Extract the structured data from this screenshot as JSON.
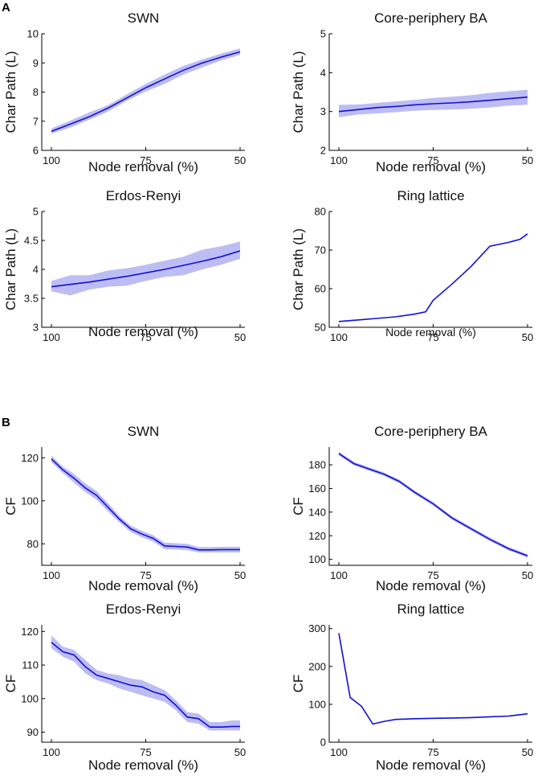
{
  "panel_labels": [
    "A",
    "B"
  ],
  "chart_data": [
    {
      "type": "line",
      "title": "SWN",
      "xlabel": "Node removal (%)",
      "ylabel": "Char Path (L)",
      "xlim": [
        100,
        50
      ],
      "ylim": [
        6,
        10
      ],
      "xticks": [
        "100",
        "75",
        "50"
      ],
      "yticks": [
        "6",
        "7",
        "8",
        "9",
        "10"
      ],
      "series": [
        {
          "name": "mean",
          "x": [
            100,
            95,
            90,
            85,
            80,
            75,
            70,
            65,
            60,
            55,
            50
          ],
          "values": [
            6.65,
            6.9,
            7.15,
            7.45,
            7.8,
            8.15,
            8.45,
            8.75,
            9.0,
            9.2,
            9.38
          ],
          "lower": [
            6.58,
            6.78,
            7.05,
            7.33,
            7.7,
            8.02,
            8.28,
            8.6,
            8.85,
            9.08,
            9.28
          ],
          "upper": [
            6.75,
            7.02,
            7.3,
            7.55,
            7.92,
            8.28,
            8.6,
            8.9,
            9.12,
            9.32,
            9.5
          ]
        }
      ]
    },
    {
      "type": "line",
      "title": "Core-periphery BA",
      "xlabel": "Node removal (%)",
      "ylabel": "Char Path (L)",
      "xlim": [
        100,
        50
      ],
      "ylim": [
        2,
        5
      ],
      "xticks": [
        "100",
        "75",
        "50"
      ],
      "yticks": [
        "2",
        "3",
        "4",
        "5"
      ],
      "series": [
        {
          "name": "mean",
          "x": [
            100,
            95,
            90,
            85,
            80,
            75,
            70,
            65,
            60,
            55,
            50
          ],
          "values": [
            3.0,
            3.05,
            3.1,
            3.13,
            3.17,
            3.2,
            3.22,
            3.25,
            3.29,
            3.33,
            3.37
          ],
          "lower": [
            2.85,
            2.92,
            2.95,
            2.98,
            3.02,
            3.04,
            3.05,
            3.07,
            3.1,
            3.15,
            3.17
          ],
          "upper": [
            3.17,
            3.18,
            3.22,
            3.26,
            3.3,
            3.35,
            3.38,
            3.42,
            3.48,
            3.52,
            3.56
          ]
        }
      ]
    },
    {
      "type": "line",
      "title": "Erdos-Renyi",
      "xlabel": "Node removal (%)",
      "ylabel": "Char Path (L)",
      "xlim": [
        100,
        50
      ],
      "ylim": [
        3,
        5
      ],
      "xticks": [
        "100",
        "75",
        "50"
      ],
      "yticks": [
        "3",
        "3.5",
        "4",
        "4.5",
        "5"
      ],
      "series": [
        {
          "name": "mean",
          "x": [
            100,
            95,
            90,
            85,
            80,
            75,
            70,
            65,
            60,
            55,
            50
          ],
          "values": [
            3.7,
            3.74,
            3.78,
            3.83,
            3.88,
            3.94,
            4.0,
            4.07,
            4.14,
            4.22,
            4.32
          ],
          "lower": [
            3.62,
            3.55,
            3.65,
            3.7,
            3.72,
            3.8,
            3.87,
            3.9,
            4.0,
            4.08,
            4.18
          ],
          "upper": [
            3.8,
            3.9,
            3.9,
            3.98,
            4.02,
            4.08,
            4.15,
            4.22,
            4.34,
            4.4,
            4.48
          ]
        }
      ]
    },
    {
      "type": "line",
      "title": "Ring lattice",
      "xlabel": "Node removal (%)",
      "ylabel": "Char Path (L)",
      "xlim": [
        100,
        50
      ],
      "ylim": [
        50,
        80
      ],
      "xticks": [
        "100",
        "75",
        "50"
      ],
      "yticks": [
        "50",
        "60",
        "70",
        "80"
      ],
      "series": [
        {
          "name": "mean",
          "x": [
            100,
            95,
            90,
            85,
            80,
            77,
            75,
            70,
            65,
            60,
            55,
            52,
            50
          ],
          "values": [
            51.5,
            51.9,
            52.3,
            52.7,
            53.4,
            54.0,
            57.0,
            61.2,
            65.7,
            71.0,
            72.0,
            72.8,
            74.2
          ],
          "lower": [],
          "upper": []
        }
      ]
    },
    {
      "type": "line",
      "title": "SWN",
      "xlabel": "Node removal (%)",
      "ylabel": "CF",
      "xlim": [
        100,
        50
      ],
      "ylim": [
        70,
        125
      ],
      "xticks": [
        "100",
        "75",
        "50"
      ],
      "yticks": [
        "80",
        "100",
        "120"
      ],
      "series": [
        {
          "name": "mean",
          "x": [
            100,
            97,
            94,
            91,
            88,
            85,
            82,
            79,
            76,
            73,
            70,
            67,
            64,
            61,
            58,
            55,
            52,
            50
          ],
          "values": [
            119.5,
            114.5,
            110.5,
            106,
            102.5,
            97,
            91.5,
            87,
            84.5,
            82.5,
            79,
            78.8,
            78.5,
            77.2,
            77.2,
            77.3,
            77.3,
            77.3
          ],
          "lower": [
            118,
            113,
            108.5,
            104,
            100.5,
            95,
            90,
            85.5,
            83,
            81,
            77.5,
            77.3,
            77,
            76,
            76,
            76,
            76,
            76
          ],
          "upper": [
            121,
            116,
            112.5,
            108,
            104.5,
            99,
            93,
            88.5,
            86,
            84,
            80.5,
            80.3,
            80,
            78.5,
            78.5,
            78.6,
            78.6,
            78.6
          ]
        }
      ]
    },
    {
      "type": "line",
      "title": "Core-periphery BA",
      "xlabel": "Node removal (%)",
      "ylabel": "CF",
      "xlim": [
        100,
        50
      ],
      "ylim": [
        95,
        195
      ],
      "xticks": [
        "100",
        "75",
        "50"
      ],
      "yticks": [
        "100",
        "120",
        "140",
        "160",
        "180"
      ],
      "series": [
        {
          "name": "mean",
          "x": [
            100,
            96,
            92,
            88,
            84,
            80,
            75,
            70,
            65,
            60,
            55,
            50
          ],
          "values": [
            189.5,
            181,
            176.5,
            172,
            166,
            157,
            147,
            135,
            126,
            117,
            109,
            103
          ],
          "lower": [
            188,
            179.5,
            175,
            170.5,
            164.5,
            155.5,
            145.5,
            133.5,
            124.5,
            115.5,
            107.5,
            101.5
          ],
          "upper": [
            191,
            182.5,
            178,
            173.5,
            167.5,
            158.5,
            148.5,
            136.5,
            127.5,
            118.5,
            110.5,
            104.5
          ]
        }
      ]
    },
    {
      "type": "line",
      "title": "Erdos-Renyi",
      "xlabel": "Node removal (%)",
      "ylabel": "CF",
      "xlim": [
        100,
        50
      ],
      "ylim": [
        87,
        122
      ],
      "xticks": [
        "100",
        "75",
        "50"
      ],
      "yticks": [
        "90",
        "100",
        "110",
        "120"
      ],
      "series": [
        {
          "name": "mean",
          "x": [
            100,
            97,
            94,
            91,
            88,
            85,
            82,
            79,
            76,
            73,
            70,
            67,
            64,
            61,
            58,
            55,
            52,
            50
          ],
          "values": [
            116.8,
            114,
            113,
            109.5,
            107,
            106,
            105,
            104,
            103.5,
            102,
            101,
            98,
            94.5,
            94,
            91.5,
            91.5,
            91.7,
            91.7
          ],
          "lower": [
            115,
            112.5,
            111,
            107.5,
            105.5,
            104.5,
            103,
            102,
            101,
            100,
            99,
            96.5,
            93,
            92.5,
            90.5,
            90.5,
            90.5,
            90.5
          ],
          "upper": [
            118.8,
            115.5,
            114.5,
            111.5,
            108.5,
            107.5,
            107,
            106,
            105.5,
            104,
            102.5,
            99.5,
            96,
            95.5,
            93,
            93,
            93.5,
            93.5
          ]
        }
      ]
    },
    {
      "type": "line",
      "title": "Ring lattice",
      "xlabel": "Node removal (%)",
      "ylabel": "CF",
      "xlim": [
        100,
        50
      ],
      "ylim": [
        0,
        310
      ],
      "xticks": [
        "100",
        "75",
        "50"
      ],
      "yticks": [
        "0",
        "100",
        "200",
        "300"
      ],
      "series": [
        {
          "name": "mean",
          "x": [
            100,
            97,
            94,
            91,
            88,
            85,
            80,
            75,
            70,
            65,
            60,
            55,
            50
          ],
          "values": [
            288,
            118,
            95,
            48,
            55,
            60,
            62,
            63,
            64,
            65,
            67,
            69,
            75
          ],
          "lower": [],
          "upper": []
        }
      ]
    }
  ]
}
